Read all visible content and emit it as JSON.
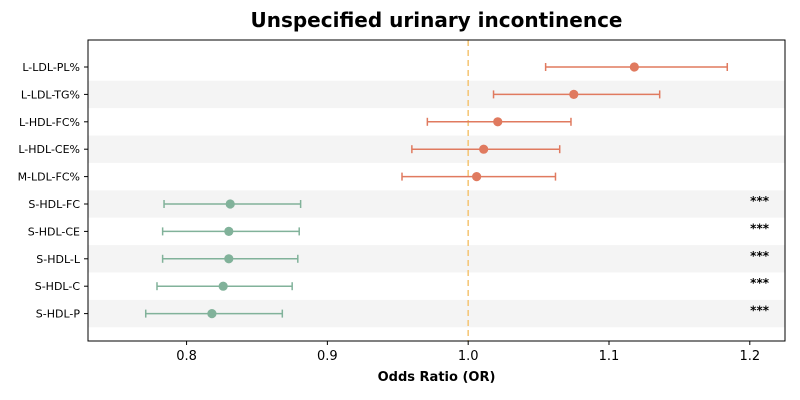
{
  "chart_data": {
    "type": "forest",
    "title": "Unspecified urinary incontinence",
    "xlabel": "Odds Ratio (OR)",
    "ylabel": "",
    "xlim": [
      0.73,
      1.225
    ],
    "xticks": [
      0.8,
      0.9,
      1.0,
      1.1,
      1.2
    ],
    "xtick_labels": [
      "0.8",
      "0.9",
      "1.0",
      "1.1",
      "1.2"
    ],
    "reference_line": 1.0,
    "reference_line_color": "#f5c87a",
    "grid": false,
    "alternating_row_shading": true,
    "colors": {
      "positive": "#e07a5f",
      "negative": "#81b29a"
    },
    "rows": [
      {
        "label": "L-LDL-PL%",
        "or": 1.118,
        "lower": 1.055,
        "upper": 1.184,
        "direction": "positive",
        "significance": ""
      },
      {
        "label": "L-LDL-TG%",
        "or": 1.075,
        "lower": 1.018,
        "upper": 1.136,
        "direction": "positive",
        "significance": ""
      },
      {
        "label": "L-HDL-FC%",
        "or": 1.021,
        "lower": 0.971,
        "upper": 1.073,
        "direction": "positive",
        "significance": ""
      },
      {
        "label": "L-HDL-CE%",
        "or": 1.011,
        "lower": 0.96,
        "upper": 1.065,
        "direction": "positive",
        "significance": ""
      },
      {
        "label": "M-LDL-FC%",
        "or": 1.006,
        "lower": 0.953,
        "upper": 1.062,
        "direction": "positive",
        "significance": ""
      },
      {
        "label": "S-HDL-FC",
        "or": 0.831,
        "lower": 0.784,
        "upper": 0.881,
        "direction": "negative",
        "significance": "***"
      },
      {
        "label": "S-HDL-CE",
        "or": 0.83,
        "lower": 0.783,
        "upper": 0.88,
        "direction": "negative",
        "significance": "***"
      },
      {
        "label": "S-HDL-L",
        "or": 0.83,
        "lower": 0.783,
        "upper": 0.879,
        "direction": "negative",
        "significance": "***"
      },
      {
        "label": "S-HDL-C",
        "or": 0.826,
        "lower": 0.779,
        "upper": 0.875,
        "direction": "negative",
        "significance": "***"
      },
      {
        "label": "S-HDL-P",
        "or": 0.818,
        "lower": 0.771,
        "upper": 0.868,
        "direction": "negative",
        "significance": "***"
      }
    ]
  }
}
